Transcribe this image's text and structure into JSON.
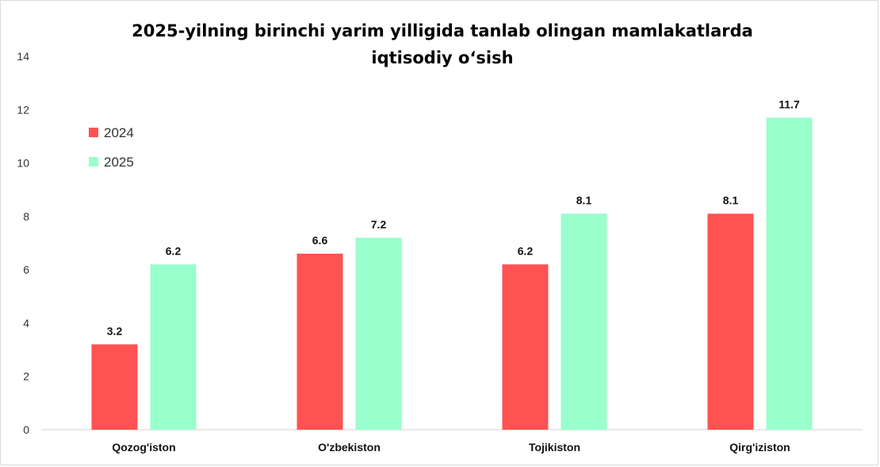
{
  "chart_data": {
    "type": "bar",
    "title_line1": "2025-yilning birinchi yarim yilligida tanlab olingan mamlakatlarda",
    "title_line2": "iqtisodiy o‘sish",
    "xlabel": "",
    "ylabel": "",
    "ylim": [
      0,
      14
    ],
    "yticks": [
      0,
      2,
      4,
      6,
      8,
      10,
      12,
      14
    ],
    "grid": false,
    "legend_position": "top-left",
    "categories": [
      "Qozog'iston",
      "O'zbekiston",
      "Tojikiston",
      "Qirg'iziston"
    ],
    "series": [
      {
        "name": "2024",
        "color": "#ff5252",
        "values": [
          3.2,
          6.6,
          6.2,
          8.1
        ]
      },
      {
        "name": "2025",
        "color": "#99ffcc",
        "values": [
          6.2,
          7.2,
          8.1,
          11.7
        ]
      }
    ]
  }
}
